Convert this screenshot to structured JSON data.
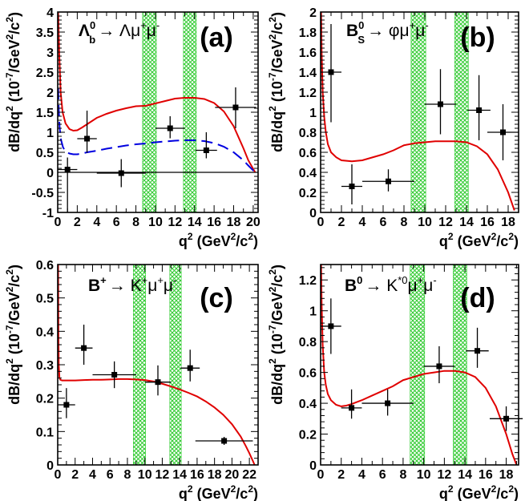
{
  "chart_data": [
    {
      "type": "scatter",
      "tag": "(a)",
      "process": {
        "base": "Λ",
        "base_sub": "b",
        "base_sup": "0",
        "rest": "→ Λμ",
        "s1": "+",
        "mu": "μ",
        "s2": "-"
      },
      "xlabel": {
        "q": "q",
        "sup": "2",
        "rest": " (GeV",
        "sup2": "2",
        "end": "/c",
        "sup3": "2",
        "close": ")"
      },
      "ylabel": {
        "main": "dB/dq",
        "sup": "2",
        "unit": " (10",
        "usup": "-7",
        "unit2": "/GeV",
        "usup2": "2",
        "unit3": "/c",
        "usup3": "2",
        "close": ")"
      },
      "xlim": [
        0,
        20.5
      ],
      "ylim": [
        -1,
        4
      ],
      "xticks": [
        0,
        2,
        4,
        6,
        8,
        10,
        12,
        14,
        16,
        18,
        20
      ],
      "yticks": [
        -1,
        -0.5,
        0,
        0.5,
        1,
        1.5,
        2,
        2.5,
        3,
        3.5,
        4
      ],
      "zero_line": true,
      "vetoes": [
        [
          8.68,
          10.09
        ],
        [
          12.86,
          14.18
        ]
      ],
      "points": [
        {
          "x": 1.0,
          "xerr": 1.0,
          "y": 0.07,
          "yerr_lo": 1.1,
          "yerr_hi": 0.3
        },
        {
          "x": 3.0,
          "xerr": 1.0,
          "y": 0.84,
          "yerr_lo": 0.35,
          "yerr_hi": 0.7
        },
        {
          "x": 6.5,
          "xerr": 2.5,
          "y": -0.02,
          "yerr_lo": 0.35,
          "yerr_hi": 0.35
        },
        {
          "x": 11.5,
          "xerr": 1.5,
          "y": 1.1,
          "yerr_lo": 0.25,
          "yerr_hi": 0.3
        },
        {
          "x": 15.2,
          "xerr": 1.1,
          "y": 0.55,
          "yerr_lo": 0.2,
          "yerr_hi": 0.45
        },
        {
          "x": 18.2,
          "xerr": 2.1,
          "y": 1.62,
          "yerr_lo": 0.52,
          "yerr_hi": 0.5
        }
      ],
      "curves": [
        {
          "color": "#e00000",
          "dash": false,
          "x": [
            0.05,
            0.15,
            0.3,
            0.5,
            0.8,
            1.2,
            1.6,
            2.0,
            2.5,
            3,
            4,
            5,
            6,
            7,
            8,
            9,
            10,
            11,
            12,
            13,
            14,
            15,
            16,
            17,
            18,
            19,
            19.5,
            20.2
          ],
          "y": [
            4.0,
            3.0,
            2.0,
            1.5,
            1.22,
            1.08,
            1.04,
            1.05,
            1.12,
            1.2,
            1.36,
            1.46,
            1.54,
            1.6,
            1.65,
            1.66,
            1.72,
            1.78,
            1.84,
            1.86,
            1.86,
            1.83,
            1.73,
            1.52,
            1.15,
            0.6,
            0.3,
            0.0
          ]
        },
        {
          "color": "#0000e0",
          "dash": true,
          "x": [
            0.05,
            0.1,
            0.2,
            0.35,
            0.55,
            0.8,
            1.2,
            1.6,
            2.0,
            2.5,
            3,
            4,
            5,
            6,
            7,
            8,
            9,
            10,
            11,
            12,
            13,
            14,
            15,
            16,
            17,
            18,
            19,
            19.5,
            20.2
          ],
          "y": [
            2.1,
            1.6,
            1.1,
            0.8,
            0.62,
            0.52,
            0.47,
            0.45,
            0.45,
            0.47,
            0.5,
            0.54,
            0.59,
            0.63,
            0.67,
            0.7,
            0.72,
            0.75,
            0.77,
            0.79,
            0.8,
            0.8,
            0.78,
            0.73,
            0.64,
            0.5,
            0.3,
            0.17,
            0.0
          ]
        }
      ]
    },
    {
      "type": "scatter",
      "tag": "(b)",
      "process": {
        "base": "B",
        "base_sub": "S",
        "base_sup": "0",
        "rest": "→ φμ",
        "s1": "+",
        "mu": "μ",
        "s2": "-"
      },
      "xlabel": {
        "q": "q",
        "sup": "2",
        "rest": " (GeV",
        "sup2": "2",
        "end": "/c",
        "sup3": "2",
        "close": ")"
      },
      "ylabel": {
        "main": "dB/dq",
        "sup": "2",
        "unit": " (10",
        "usup": "-7",
        "unit2": "/GeV",
        "usup2": "2",
        "unit3": "/c",
        "usup3": "2",
        "close": ")"
      },
      "xlim": [
        0,
        19
      ],
      "ylim": [
        0,
        2
      ],
      "xticks": [
        0,
        2,
        4,
        6,
        8,
        10,
        12,
        14,
        16,
        18
      ],
      "yticks": [
        0,
        0.2,
        0.4,
        0.6,
        0.8,
        1,
        1.2,
        1.4,
        1.6,
        1.8,
        2
      ],
      "zero_line": false,
      "vetoes": [
        [
          8.68,
          10.09
        ],
        [
          12.86,
          14.18
        ]
      ],
      "points": [
        {
          "x": 1.0,
          "xerr": 1.0,
          "y": 1.4,
          "yerr_lo": 0.5,
          "yerr_hi": 0.48
        },
        {
          "x": 3.0,
          "xerr": 1.0,
          "y": 0.26,
          "yerr_lo": 0.18,
          "yerr_hi": 0.22
        },
        {
          "x": 6.5,
          "xerr": 2.5,
          "y": 0.31,
          "yerr_lo": 0.1,
          "yerr_hi": 0.12
        },
        {
          "x": 11.5,
          "xerr": 1.5,
          "y": 1.08,
          "yerr_lo": 0.3,
          "yerr_hi": 0.35
        },
        {
          "x": 15.2,
          "xerr": 1.1,
          "y": 1.02,
          "yerr_lo": 0.3,
          "yerr_hi": 0.35
        },
        {
          "x": 17.5,
          "xerr": 1.5,
          "y": 0.8,
          "yerr_lo": 0.28,
          "yerr_hi": 0.28
        }
      ],
      "curves": [
        {
          "color": "#e00000",
          "dash": false,
          "x": [
            0.05,
            0.1,
            0.2,
            0.35,
            0.5,
            0.7,
            1.0,
            1.5,
            2,
            3,
            4,
            5,
            6,
            7,
            8,
            9,
            10,
            11,
            12,
            13,
            14,
            15,
            16,
            17,
            18,
            18.6
          ],
          "y": [
            2.0,
            1.6,
            1.2,
            0.95,
            0.8,
            0.68,
            0.6,
            0.55,
            0.52,
            0.51,
            0.52,
            0.55,
            0.58,
            0.62,
            0.67,
            0.69,
            0.7,
            0.71,
            0.71,
            0.71,
            0.7,
            0.66,
            0.58,
            0.43,
            0.2,
            0.02
          ]
        }
      ]
    },
    {
      "type": "scatter",
      "tag": "(c)",
      "process": {
        "base": "B",
        "base_sub": "",
        "base_sup": "+",
        "rest": "→ K",
        "s0": "+",
        "mu0": "μ",
        "s1": "+",
        "mu": "μ",
        "s2": "-"
      },
      "xlabel": {
        "q": "q",
        "sup": "2",
        "rest": " (GeV",
        "sup2": "2",
        "end": "/c",
        "sup3": "2",
        "close": ")"
      },
      "ylabel": {
        "main": "dB/dq",
        "sup": "2",
        "unit": " (10",
        "usup": "-7",
        "unit2": "/GeV",
        "usup2": "2",
        "unit3": "/c",
        "usup3": "2",
        "close": ")"
      },
      "xlim": [
        0,
        23
      ],
      "ylim": [
        0,
        0.6
      ],
      "xticks": [
        0,
        2,
        4,
        6,
        8,
        10,
        12,
        14,
        16,
        18,
        20,
        22
      ],
      "yticks": [
        0,
        0.1,
        0.2,
        0.3,
        0.4,
        0.5,
        0.6
      ],
      "zero_line": false,
      "vetoes": [
        [
          8.68,
          10.09
        ],
        [
          12.86,
          14.18
        ]
      ],
      "points": [
        {
          "x": 1.0,
          "xerr": 1.0,
          "y": 0.18,
          "yerr_lo": 0.04,
          "yerr_hi": 0.05
        },
        {
          "x": 3.0,
          "xerr": 1.0,
          "y": 0.35,
          "yerr_lo": 0.05,
          "yerr_hi": 0.07
        },
        {
          "x": 6.5,
          "xerr": 2.5,
          "y": 0.27,
          "yerr_lo": 0.04,
          "yerr_hi": 0.04
        },
        {
          "x": 11.5,
          "xerr": 1.5,
          "y": 0.248,
          "yerr_lo": 0.04,
          "yerr_hi": 0.05
        },
        {
          "x": 15.2,
          "xerr": 1.1,
          "y": 0.29,
          "yerr_lo": 0.04,
          "yerr_hi": 0.055
        },
        {
          "x": 19.1,
          "xerr": 3.3,
          "y": 0.072,
          "yerr_lo": 0.012,
          "yerr_hi": 0.012
        }
      ],
      "curves": [
        {
          "color": "#e00000",
          "dash": false,
          "x": [
            0.05,
            0.08,
            0.12,
            0.2,
            0.3,
            0.5,
            1,
            2,
            3,
            4,
            5,
            6,
            7,
            8,
            9,
            10,
            11,
            12,
            13,
            14,
            15,
            16,
            17,
            18,
            19,
            20,
            21,
            21.6,
            22,
            22.4,
            22.6
          ],
          "y": [
            0.6,
            0.4,
            0.3,
            0.262,
            0.255,
            0.253,
            0.253,
            0.253,
            0.254,
            0.255,
            0.255,
            0.256,
            0.257,
            0.257,
            0.256,
            0.254,
            0.25,
            0.243,
            0.235,
            0.226,
            0.216,
            0.205,
            0.19,
            0.172,
            0.15,
            0.122,
            0.085,
            0.056,
            0.035,
            0.012,
            0.0
          ]
        }
      ]
    },
    {
      "type": "scatter",
      "tag": "(d)",
      "process": {
        "base": "B",
        "base_sub": "",
        "base_sup": "0",
        "rest": "→ K",
        "s0": "*0",
        "mu0": "μ",
        "s1": "+",
        "mu": "μ",
        "s2": "-"
      },
      "xlabel": {
        "q": "q",
        "sup": "2",
        "rest": " (GeV",
        "sup2": "2",
        "end": "/c",
        "sup3": "2",
        "close": ")"
      },
      "ylabel": {
        "main": "dB/dq",
        "sup": "2",
        "unit": " (10",
        "usup": "-7",
        "unit2": "/GeV",
        "usup2": "2",
        "unit3": "/c",
        "usup3": "2",
        "close": ")"
      },
      "xlim": [
        0,
        19.2
      ],
      "ylim": [
        0,
        1.3
      ],
      "xticks": [
        0,
        2,
        4,
        6,
        8,
        10,
        12,
        14,
        16,
        18
      ],
      "yticks": [
        0,
        0.2,
        0.4,
        0.6,
        0.8,
        1,
        1.2
      ],
      "zero_line": false,
      "vetoes": [
        [
          8.68,
          10.09
        ],
        [
          12.86,
          14.18
        ]
      ],
      "points": [
        {
          "x": 1.0,
          "xerr": 1.0,
          "y": 0.9,
          "yerr_lo": 0.18,
          "yerr_hi": 0.18
        },
        {
          "x": 3.0,
          "xerr": 1.0,
          "y": 0.37,
          "yerr_lo": 0.07,
          "yerr_hi": 0.12
        },
        {
          "x": 6.5,
          "xerr": 2.5,
          "y": 0.4,
          "yerr_lo": 0.08,
          "yerr_hi": 0.09
        },
        {
          "x": 11.5,
          "xerr": 1.5,
          "y": 0.64,
          "yerr_lo": 0.11,
          "yerr_hi": 0.13
        },
        {
          "x": 15.2,
          "xerr": 1.1,
          "y": 0.74,
          "yerr_lo": 0.11,
          "yerr_hi": 0.15
        },
        {
          "x": 18.0,
          "xerr": 1.6,
          "y": 0.3,
          "yerr_lo": 0.08,
          "yerr_hi": 0.08
        }
      ],
      "curves": [
        {
          "color": "#e00000",
          "dash": false,
          "x": [
            0.05,
            0.1,
            0.2,
            0.35,
            0.5,
            0.7,
            1.0,
            1.5,
            2.0,
            2.5,
            3,
            4,
            5,
            6,
            7,
            8,
            9,
            10,
            11,
            12,
            13,
            14,
            15,
            16,
            17,
            18,
            18.6,
            19.0
          ],
          "y": [
            1.3,
            1.05,
            0.78,
            0.6,
            0.52,
            0.46,
            0.42,
            0.39,
            0.38,
            0.385,
            0.395,
            0.42,
            0.45,
            0.48,
            0.51,
            0.55,
            0.57,
            0.59,
            0.6,
            0.61,
            0.61,
            0.6,
            0.57,
            0.5,
            0.38,
            0.2,
            0.07,
            0.0
          ]
        }
      ]
    }
  ]
}
